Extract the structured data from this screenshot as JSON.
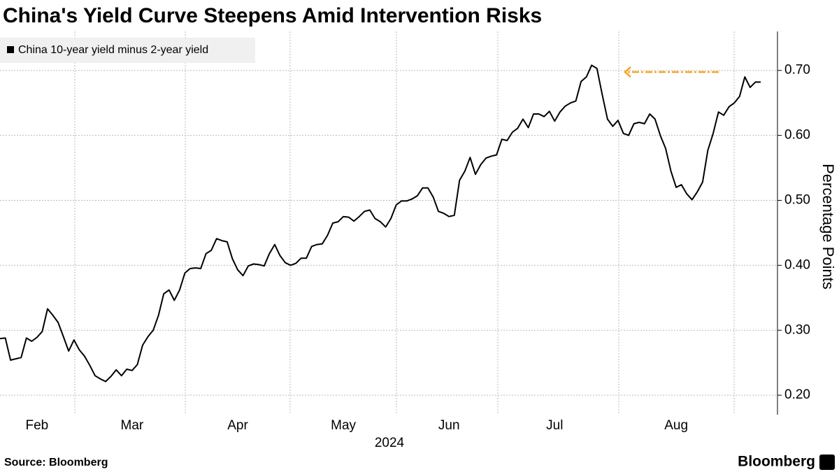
{
  "chart_data": {
    "type": "line",
    "title": "China's Yield Curve Steepens Amid Intervention Risks",
    "x_label": "2024",
    "y_label": "Percentage Points",
    "source": "Source: Bloomberg",
    "brand": "Bloomberg",
    "legend": true,
    "grid": true,
    "categories": [
      null,
      null,
      null,
      null,
      null,
      null,
      null,
      "Feb",
      null,
      null,
      null,
      null,
      null,
      null,
      null,
      null,
      null,
      null,
      null,
      null,
      null,
      null,
      null,
      null,
      null,
      "Mar",
      null,
      null,
      null,
      null,
      null,
      null,
      null,
      null,
      null,
      null,
      null,
      null,
      null,
      null,
      null,
      null,
      null,
      null,
      null,
      "Apr",
      null,
      null,
      null,
      null,
      null,
      null,
      null,
      null,
      null,
      null,
      null,
      null,
      null,
      null,
      null,
      null,
      null,
      null,
      null,
      "May",
      null,
      null,
      null,
      null,
      null,
      null,
      null,
      null,
      null,
      null,
      null,
      null,
      null,
      null,
      null,
      null,
      null,
      null,
      null,
      "Jun",
      null,
      null,
      null,
      null,
      null,
      null,
      null,
      null,
      null,
      null,
      null,
      null,
      null,
      null,
      null,
      null,
      null,
      null,
      null,
      "Jul",
      null,
      null,
      null,
      null,
      null,
      null,
      null,
      null,
      null,
      null,
      null,
      null,
      null,
      null,
      null,
      null,
      null,
      null,
      null,
      null,
      null,
      null,
      "Aug",
      null,
      null,
      null,
      null,
      null,
      null,
      null,
      null,
      null,
      null,
      null,
      null,
      null,
      null,
      null,
      null
    ],
    "series": [
      {
        "name": "China 10-year yield minus 2-year yield",
        "color": "#000000",
        "values": [
          0.287,
          0.288,
          0.254,
          0.256,
          0.258,
          0.288,
          0.283,
          0.289,
          0.298,
          0.333,
          0.323,
          0.312,
          0.29,
          0.268,
          0.285,
          0.27,
          0.26,
          0.246,
          0.23,
          0.225,
          0.221,
          0.229,
          0.239,
          0.23,
          0.24,
          0.238,
          0.247,
          0.277,
          0.29,
          0.3,
          0.323,
          0.356,
          0.362,
          0.346,
          0.362,
          0.388,
          0.395,
          0.396,
          0.395,
          0.418,
          0.423,
          0.441,
          0.438,
          0.436,
          0.41,
          0.393,
          0.384,
          0.399,
          0.402,
          0.401,
          0.399,
          0.418,
          0.432,
          0.415,
          0.404,
          0.4,
          0.403,
          0.411,
          0.411,
          0.429,
          0.432,
          0.433,
          0.446,
          0.465,
          0.467,
          0.475,
          0.474,
          0.468,
          0.475,
          0.483,
          0.485,
          0.472,
          0.467,
          0.459,
          0.472,
          0.493,
          0.499,
          0.499,
          0.502,
          0.507,
          0.519,
          0.519,
          0.505,
          0.483,
          0.48,
          0.475,
          0.477,
          0.531,
          0.545,
          0.566,
          0.54,
          0.555,
          0.565,
          0.568,
          0.57,
          0.594,
          0.592,
          0.605,
          0.611,
          0.625,
          0.612,
          0.633,
          0.633,
          0.629,
          0.637,
          0.622,
          0.636,
          0.645,
          0.65,
          0.653,
          0.683,
          0.69,
          0.708,
          0.703,
          0.663,
          0.625,
          0.614,
          0.623,
          0.603,
          0.6,
          0.618,
          0.62,
          0.618,
          0.633,
          0.625,
          0.6,
          0.58,
          0.545,
          0.52,
          0.524,
          0.51,
          0.501,
          0.513,
          0.528,
          0.577,
          0.603,
          0.636,
          0.631,
          0.644,
          0.65,
          0.66,
          0.69,
          0.674,
          0.682,
          0.682
        ]
      }
    ],
    "ylim": [
      0.17,
      0.76
    ],
    "yticks": [
      {
        "value": 0.2,
        "label": "0.20"
      },
      {
        "value": 0.3,
        "label": "0.30"
      },
      {
        "value": 0.4,
        "label": "0.40"
      },
      {
        "value": 0.5,
        "label": "0.50"
      },
      {
        "value": 0.6,
        "label": "0.60"
      },
      {
        "value": 0.7,
        "label": "0.70"
      }
    ]
  }
}
